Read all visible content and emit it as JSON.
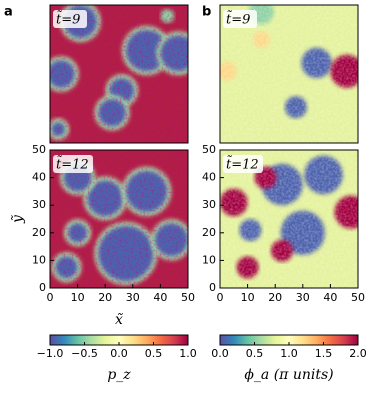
{
  "chart_data": [
    {
      "type": "heatmap",
      "panel_label": "a",
      "annotation": "t̃=9",
      "xlim": [
        0,
        50
      ],
      "ylim": [
        0,
        50
      ]
    },
    {
      "type": "heatmap",
      "panel_label": "b",
      "annotation": "t̃=9",
      "xlim": [
        0,
        50
      ],
      "ylim": [
        0,
        50
      ]
    },
    {
      "type": "heatmap",
      "annotation": "t̃=12",
      "xlim": [
        0,
        50
      ],
      "ylim": [
        0,
        50
      ],
      "xticks": [
        0,
        10,
        20,
        30,
        40,
        50
      ],
      "yticks": [
        0,
        10,
        20,
        30,
        40,
        50
      ],
      "xlabel": "x̃",
      "ylabel": "ỹ"
    },
    {
      "type": "heatmap",
      "annotation": "t̃=12",
      "xlim": [
        0,
        50
      ],
      "ylim": [
        0,
        50
      ],
      "xticks": [
        0,
        10,
        20,
        30,
        40,
        50
      ],
      "yticks": [
        0,
        10,
        20,
        30,
        40,
        50
      ]
    },
    {
      "type": "colorbar",
      "label": "p_z",
      "colormap": [
        "#5e4fa2",
        "#3288bd",
        "#66c2a5",
        "#abdda4",
        "#e6f598",
        "#ffffbf",
        "#fee08b",
        "#fdae61",
        "#f46d43",
        "#d53e4f",
        "#9e0142"
      ],
      "xlim": [
        -1,
        1
      ],
      "xticks": [
        {
          "value": -1,
          "label": "−1.0"
        },
        {
          "value": -0.5,
          "label": "−0.5"
        },
        {
          "value": 0,
          "label": "0.0"
        },
        {
          "value": 0.5,
          "label": "0.5"
        },
        {
          "value": 1,
          "label": "1.0"
        }
      ]
    },
    {
      "type": "colorbar",
      "label": "ϕ_a (π units)",
      "colormap": [
        "#5e4fa2",
        "#3288bd",
        "#66c2a5",
        "#abdda4",
        "#e6f598",
        "#ffffbf",
        "#fee08b",
        "#fdae61",
        "#f46d43",
        "#d53e4f",
        "#9e0142"
      ],
      "xlim": [
        0,
        2
      ],
      "xticks": [
        {
          "value": 0,
          "label": "0.0"
        },
        {
          "value": 0.5,
          "label": "0.5"
        },
        {
          "value": 1,
          "label": "1.0"
        },
        {
          "value": 1.5,
          "label": "1.5"
        },
        {
          "value": 2,
          "label": "2.0"
        }
      ]
    }
  ]
}
